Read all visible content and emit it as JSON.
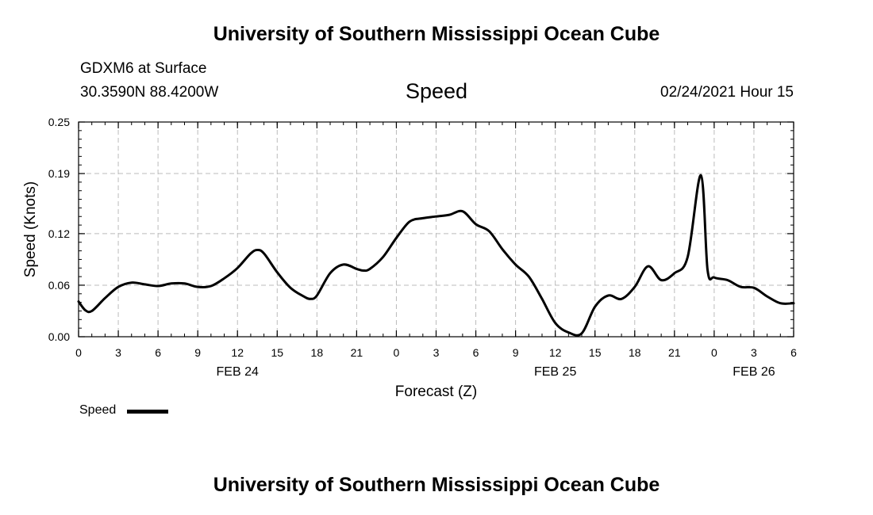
{
  "header": {
    "title": "University of Southern Mississippi Ocean Cube",
    "station": "GDXM6 at Surface",
    "coords": "30.3590N 88.4200W",
    "datetime": "02/24/2021 Hour 15"
  },
  "footer": {
    "title": "University of Southern Mississippi Ocean Cube"
  },
  "chart_data": {
    "type": "line",
    "title": "Speed",
    "xlabel": "Forecast (Z)",
    "ylabel": "Speed (Knots)",
    "ylim": [
      0,
      0.25
    ],
    "yticks": [
      0.0,
      0.06,
      0.12,
      0.19,
      0.25
    ],
    "ytick_labels": [
      "0.00",
      "0.06",
      "0.12",
      "0.19",
      "0.25"
    ],
    "xlim": [
      0,
      54
    ],
    "xticks": [
      0,
      3,
      6,
      9,
      12,
      15,
      18,
      21,
      24,
      27,
      30,
      33,
      36,
      39,
      42,
      45,
      48,
      51,
      54
    ],
    "xtick_labels": [
      "0",
      "3",
      "6",
      "9",
      "12",
      "15",
      "18",
      "21",
      "0",
      "3",
      "6",
      "9",
      "12",
      "15",
      "18",
      "21",
      "0",
      "3",
      "6"
    ],
    "date_labels": [
      {
        "label": "FEB 24",
        "x": 12
      },
      {
        "label": "FEB 25",
        "x": 36
      },
      {
        "label": "FEB 26",
        "x": 51
      }
    ],
    "grid": true,
    "legend": {
      "position": "bottom-left",
      "entries": [
        "Speed"
      ]
    },
    "series": [
      {
        "name": "Speed",
        "color": "#000000",
        "x": [
          0,
          0.5,
          1,
          2,
          3,
          4,
          5,
          6,
          7,
          8,
          9,
          10,
          11,
          12,
          13,
          13.5,
          14,
          15,
          16,
          17,
          17.5,
          18,
          19,
          20,
          21,
          21.5,
          22,
          23,
          24,
          25,
          26,
          27,
          28,
          29,
          30,
          31,
          32,
          33,
          34,
          35,
          36,
          37,
          38,
          39,
          40,
          41,
          42,
          43,
          44,
          45,
          46,
          47,
          47.5,
          48,
          49,
          50,
          51,
          52,
          53,
          54
        ],
        "y": [
          0.041,
          0.031,
          0.03,
          0.045,
          0.058,
          0.063,
          0.061,
          0.059,
          0.062,
          0.062,
          0.058,
          0.059,
          0.068,
          0.08,
          0.097,
          0.101,
          0.097,
          0.075,
          0.057,
          0.047,
          0.044,
          0.048,
          0.074,
          0.084,
          0.079,
          0.077,
          0.079,
          0.093,
          0.115,
          0.134,
          0.138,
          0.14,
          0.142,
          0.146,
          0.131,
          0.123,
          0.102,
          0.084,
          0.07,
          0.044,
          0.016,
          0.005,
          0.004,
          0.035,
          0.048,
          0.044,
          0.058,
          0.082,
          0.066,
          0.074,
          0.093,
          0.188,
          0.078,
          0.069,
          0.066,
          0.058,
          0.057,
          0.047,
          0.039,
          0.039
        ]
      }
    ]
  }
}
